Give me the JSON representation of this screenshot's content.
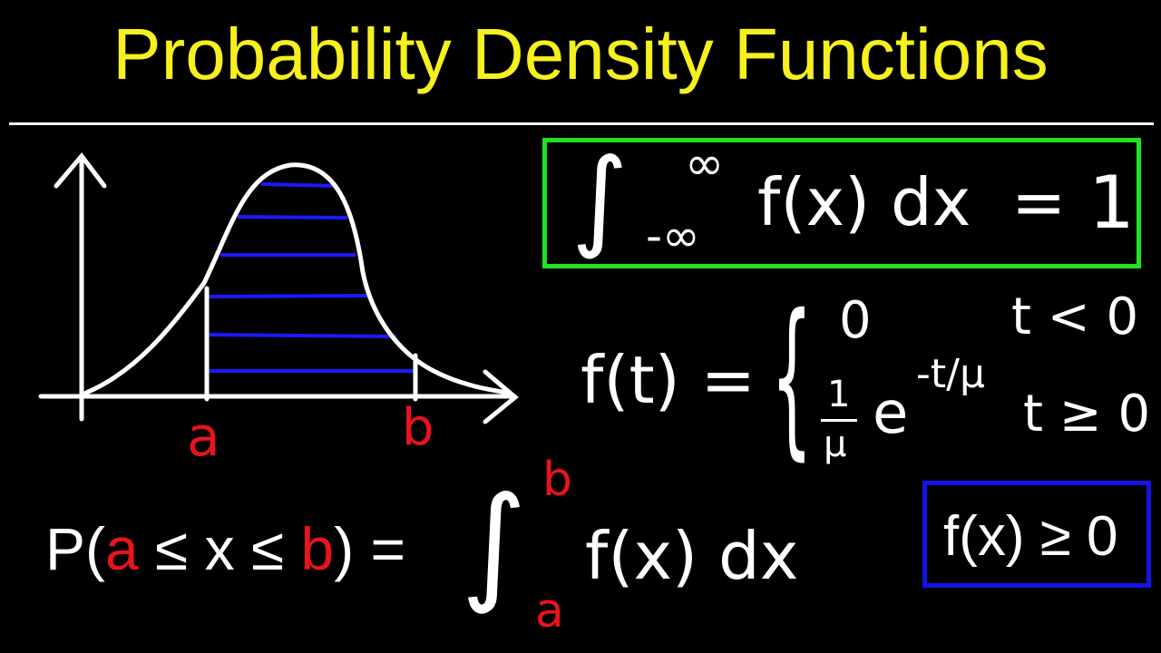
{
  "title": "Probability Density Functions",
  "colors": {
    "title": "#f5f01e",
    "background": "#000000",
    "green_box": "#22e022",
    "blue_box": "#1414e6",
    "shading": "#1a1aff",
    "limits": "#e8141c",
    "ink": "#ffffff"
  },
  "graph": {
    "label_a": "a",
    "label_b": "b"
  },
  "normalization": {
    "integral": "∫",
    "upper": "∞",
    "lower": "-∞",
    "integrand": "f(x) dx",
    "equals": "=",
    "value": "1"
  },
  "piecewise": {
    "lhs": "f(t) =",
    "brace": "{",
    "case1_value": "0",
    "case1_condition": "t < 0",
    "case2_coef_num": "1",
    "case2_coef_den": "μ",
    "case2_base": "e",
    "case2_exponent": "-t/μ",
    "case2_condition": "t ≥ 0"
  },
  "probability": {
    "p": "P(",
    "a": "a",
    "le1": " ≤ x ≤ ",
    "b": "b",
    "close": ") =",
    "integral": "∫",
    "upper": "b",
    "lower": "a",
    "integrand": "f(x) dx"
  },
  "nonnegativity": {
    "text": "f(x) ≥ 0"
  }
}
